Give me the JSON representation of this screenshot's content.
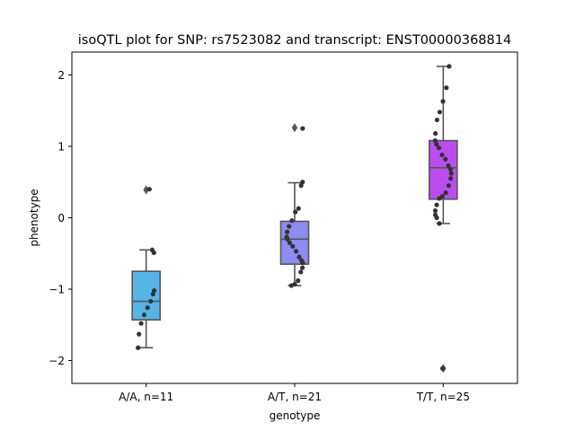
{
  "chart_data": {
    "type": "boxplot",
    "title": "isoQTL plot for SNP: rs7523082 and transcript: ENST00000368814",
    "xlabel": "genotype",
    "ylabel": "phenotype",
    "ylim": [
      -2.32,
      2.32
    ],
    "yticks": [
      -2,
      -1,
      0,
      1,
      2
    ],
    "ytick_labels": [
      "−2",
      "−1",
      "0",
      "1",
      "2"
    ],
    "grid": false,
    "legend": "none",
    "categories": [
      "A/A, n=11",
      "A/T, n=21",
      "T/T, n=25"
    ],
    "series": [
      {
        "category": "A/A, n=11",
        "color": "#56b4e9",
        "q1": -1.43,
        "median": -1.17,
        "q3": -0.75,
        "whisker_low": -1.82,
        "whisker_high": -0.45,
        "outliers": [
          0.39
        ],
        "points": [
          0.4,
          -0.45,
          -0.49,
          -1.02,
          -1.07,
          -1.17,
          -1.26,
          -1.36,
          -1.48,
          -1.63,
          -1.82
        ]
      },
      {
        "category": "A/T, n=21",
        "color": "#8c8cf2",
        "q1": -0.65,
        "median": -0.3,
        "q3": -0.05,
        "whisker_low": -0.95,
        "whisker_high": 0.49,
        "outliers": [
          1.26
        ],
        "points": [
          1.25,
          0.5,
          0.45,
          0.13,
          0.08,
          -0.04,
          -0.12,
          -0.2,
          -0.27,
          -0.3,
          -0.35,
          -0.4,
          -0.47,
          -0.55,
          -0.6,
          -0.63,
          -0.7,
          -0.76,
          -0.88,
          -0.93,
          -0.95
        ]
      },
      {
        "category": "T/T, n=25",
        "color": "#bb4df0",
        "q1": 0.26,
        "median": 0.7,
        "q3": 1.08,
        "whisker_low": -0.08,
        "whisker_high": 2.12,
        "outliers": [
          -2.11
        ],
        "points": [
          2.12,
          1.82,
          1.63,
          1.48,
          1.37,
          1.18,
          1.08,
          1.03,
          0.98,
          0.88,
          0.82,
          0.73,
          0.68,
          0.62,
          0.55,
          0.45,
          0.35,
          0.3,
          0.27,
          0.18,
          0.1,
          0.04,
          0.0,
          -0.08,
          -2.11
        ]
      }
    ]
  }
}
